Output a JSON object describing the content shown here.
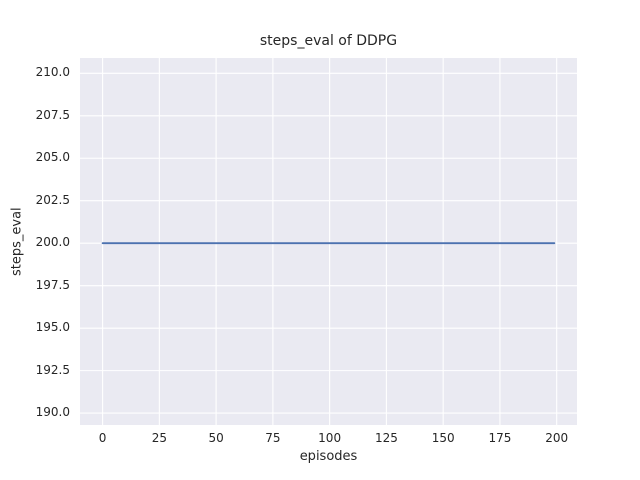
{
  "figure": {
    "background": "#FFFFFF",
    "text_color": "#262626"
  },
  "chart_data": {
    "type": "line",
    "title": "steps_eval of DDPG",
    "xlabel": "episodes",
    "ylabel": "steps_eval",
    "xlim": [
      -9.95,
      208.95
    ],
    "ylim": [
      189.3,
      210.9
    ],
    "xticks": [
      0,
      25,
      50,
      75,
      100,
      125,
      150,
      175,
      200
    ],
    "xtick_labels": [
      "0",
      "25",
      "50",
      "75",
      "100",
      "125",
      "150",
      "175",
      "200"
    ],
    "yticks": [
      190.0,
      192.5,
      195.0,
      197.5,
      200.0,
      202.5,
      205.0,
      207.5,
      210.0
    ],
    "ytick_labels": [
      "190.0",
      "192.5",
      "195.0",
      "197.5",
      "200.0",
      "202.5",
      "205.0",
      "207.5",
      "210.0"
    ],
    "grid": true,
    "legend_position": "none",
    "plot_background": "#EAEAF2",
    "grid_color": "#FFFFFF",
    "series": [
      {
        "name": "steps_eval of DDPG",
        "color": "#4C72B0",
        "linewidth": 1.8,
        "x": [
          0,
          199
        ],
        "y": [
          200,
          200
        ]
      }
    ]
  }
}
